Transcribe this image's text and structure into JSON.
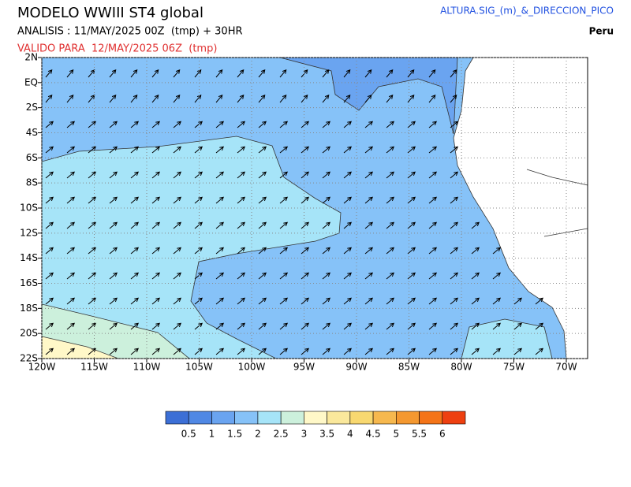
{
  "header": {
    "title": "MODELO WWIII ST4 global",
    "analysis": "ANALISIS : 11/MAY/2025 00Z  (tmp) + 30HR",
    "valid": "VALIDO PARA  12/MAY/2025 06Z  (tmp)",
    "variable": "ALTURA.SIG_(m)_&_DIRECCION_PICO",
    "region": "Peru"
  },
  "map": {
    "lat_labels": [
      "2N",
      "EQ",
      "2S",
      "4S",
      "6S",
      "8S",
      "10S",
      "12S",
      "14S",
      "16S",
      "18S",
      "20S",
      "22S"
    ],
    "lon_labels": [
      "120W",
      "115W",
      "110W",
      "105W",
      "100W",
      "95W",
      "90W",
      "85W",
      "80W",
      "75W",
      "70W"
    ]
  },
  "colorbar": {
    "colors": [
      "#3c6fd6",
      "#5088e4",
      "#6aa4f0",
      "#86c2f8",
      "#a6e4f8",
      "#ccf0dc",
      "#fff8c8",
      "#fae89c",
      "#f8d870",
      "#f6b84e",
      "#f49830",
      "#f47418",
      "#ee4010"
    ],
    "labels": [
      "0.5",
      "1",
      "1.5",
      "2",
      "2.5",
      "3",
      "3.5",
      "4",
      "4.5",
      "5",
      "5.5",
      "6"
    ]
  }
}
